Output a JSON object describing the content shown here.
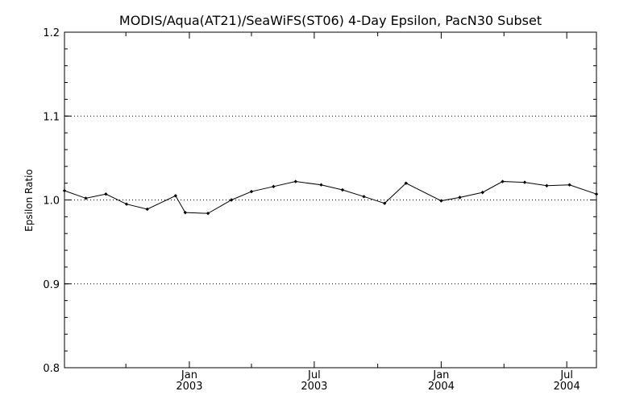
{
  "chart_data": {
    "type": "line",
    "title": "MODIS/Aqua(AT21)/SeaWiFS(ST06) 4-Day Epsilon, PacN30 Subset",
    "xlabel": "",
    "ylabel": "Epsilon Ratio",
    "ylim": [
      0.8,
      1.2
    ],
    "xlim": [
      "2002-07-04",
      "2004-08-13"
    ],
    "y_ticks": [
      "0.8",
      "0.9",
      "1.0",
      "1.1",
      "1.2"
    ],
    "x_ticks": [
      {
        "date": "2003-01-01",
        "label": "Jan",
        "year": "2003"
      },
      {
        "date": "2003-07-01",
        "label": "Jul",
        "year": "2003"
      },
      {
        "date": "2004-01-01",
        "label": "Jan",
        "year": "2004"
      },
      {
        "date": "2004-07-01",
        "label": "Jul",
        "year": "2004"
      }
    ],
    "x_minor_ticks": [
      "2002-10-01",
      "2003-04-01",
      "2003-10-01",
      "2004-04-01"
    ],
    "grid": "horizontal dotted at 0.9, 1.0, 1.1",
    "reference_line": 1.0,
    "series": [
      {
        "marker": "diamond",
        "color": "#000000",
        "points": [
          {
            "x": "2002-07-04",
            "y": 1.011
          },
          {
            "x": "2002-08-04",
            "y": 1.002
          },
          {
            "x": "2002-09-02",
            "y": 1.007
          },
          {
            "x": "2002-10-02",
            "y": 0.995
          },
          {
            "x": "2002-11-01",
            "y": 0.989
          },
          {
            "x": "2002-12-12",
            "y": 1.005
          },
          {
            "x": "2002-12-26",
            "y": 0.985
          },
          {
            "x": "2003-01-28",
            "y": 0.984
          },
          {
            "x": "2003-03-03",
            "y": 1.0
          },
          {
            "x": "2003-04-01",
            "y": 1.01
          },
          {
            "x": "2003-05-03",
            "y": 1.016
          },
          {
            "x": "2003-06-04",
            "y": 1.022
          },
          {
            "x": "2003-07-11",
            "y": 1.018
          },
          {
            "x": "2003-08-11",
            "y": 1.012
          },
          {
            "x": "2003-09-11",
            "y": 1.004
          },
          {
            "x": "2003-10-11",
            "y": 0.996
          },
          {
            "x": "2003-11-11",
            "y": 1.02
          },
          {
            "x": "2004-01-01",
            "y": 0.999
          },
          {
            "x": "2004-01-28",
            "y": 1.003
          },
          {
            "x": "2004-03-01",
            "y": 1.009
          },
          {
            "x": "2004-03-30",
            "y": 1.022
          },
          {
            "x": "2004-05-01",
            "y": 1.021
          },
          {
            "x": "2004-06-02",
            "y": 1.017
          },
          {
            "x": "2004-07-05",
            "y": 1.018
          },
          {
            "x": "2004-08-13",
            "y": 1.007
          }
        ]
      }
    ]
  }
}
